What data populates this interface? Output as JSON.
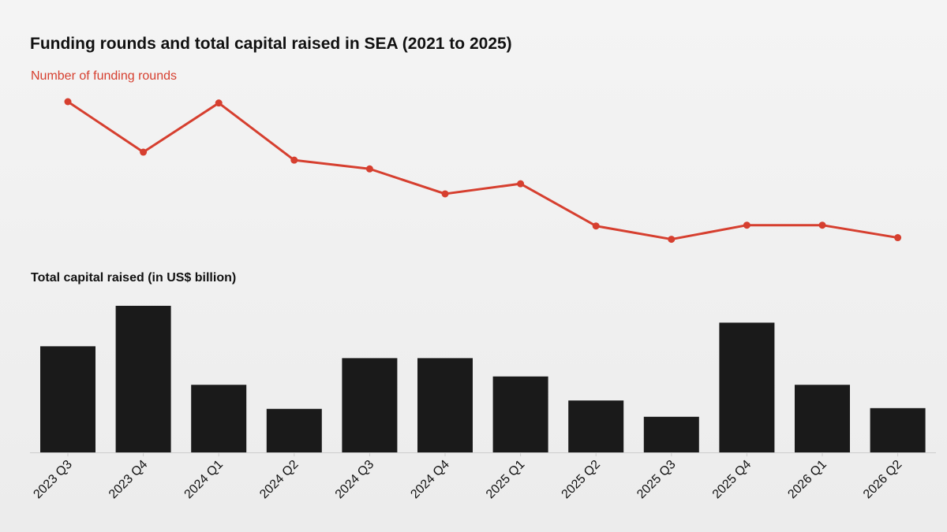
{
  "title": "Funding rounds and total capital raised in SEA (2021 to 2025)",
  "chart_data": [
    {
      "type": "line",
      "title": "Number of funding rounds",
      "categories": [
        "2023 Q3",
        "2023 Q4",
        "2024 Q1",
        "2024 Q2",
        "2024 Q3",
        "2024 Q4",
        "2025 Q1",
        "2025 Q2",
        "2025 Q3",
        "2025 Q4",
        "2026 Q1",
        "2026 Q2"
      ],
      "values": [
        100,
        81,
        99.5,
        78,
        74.7,
        65.3,
        69.1,
        53.2,
        48.2,
        53.5,
        53.5,
        48.8
      ],
      "color": "#d63f2f"
    },
    {
      "type": "bar",
      "title": "Total capital raised (in US$ billion)",
      "categories": [
        "2023 Q3",
        "2023 Q4",
        "2024 Q1",
        "2024 Q2",
        "2024 Q3",
        "2024 Q4",
        "2025 Q1",
        "2025 Q2",
        "2025 Q3",
        "2025 Q4",
        "2026 Q1",
        "2026 Q2"
      ],
      "values": [
        72.4,
        100,
        46.1,
        29.7,
        64.3,
        64.3,
        51.8,
        35.4,
        24.3,
        88.5,
        46.1,
        30.2
      ],
      "color": "#1a1a1a"
    }
  ]
}
